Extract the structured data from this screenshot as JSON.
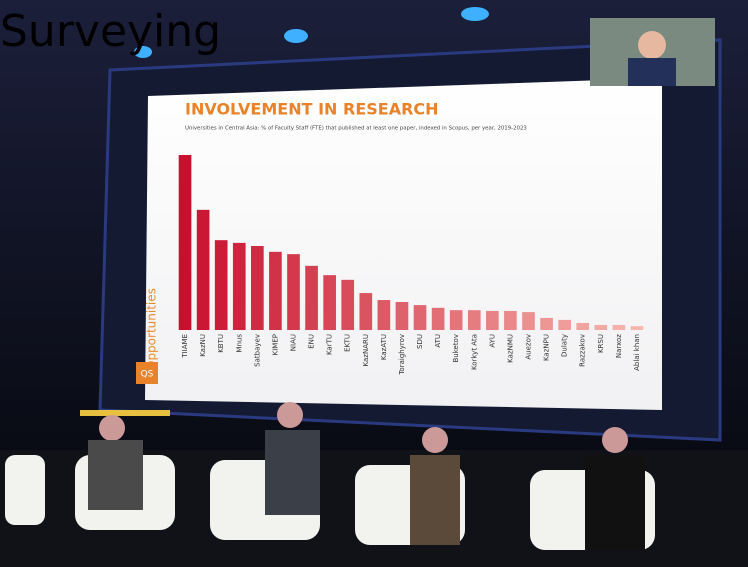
{
  "caption": "Surveying",
  "screen": {
    "side_label": "Opportunities",
    "logo": "QS"
  },
  "chart_data": {
    "type": "bar",
    "title": "INVOLVEMENT IN RESEARCH",
    "subtitle": "Universities in Central Asia: % of Faculty Staff (FTE) that published at least one paper, indexed in Scopus, per year, 2019-2023",
    "categories": [
      "TIIAME",
      "KazNU",
      "KBTU",
      "Mnus",
      "Satbayev",
      "KIMEP",
      "NIAU",
      "ENU",
      "KarTU",
      "EKTU",
      "KazNARU",
      "KazATU",
      "Toraighyrov",
      "SDU",
      "ATU",
      "Buketov",
      "Korkyt Ata",
      "AYU",
      "KazNMU",
      "Auezov",
      "KazNPU",
      "Dulaty",
      "Razzakov",
      "KRSU",
      "Narxoz",
      "Ablai khan"
    ],
    "values": [
      45,
      30.9,
      23.1,
      22.4,
      21.6,
      20.1,
      19.5,
      16.5,
      14.1,
      12.9,
      9.5,
      7.7,
      7.2,
      6.4,
      5.7,
      5.1,
      5.1,
      4.9,
      4.9,
      4.6,
      3.1,
      2.6,
      1.8,
      1.3,
      1.3,
      1.0
    ],
    "color_start": "#c8102e",
    "color_end": "#f6b8ae"
  }
}
